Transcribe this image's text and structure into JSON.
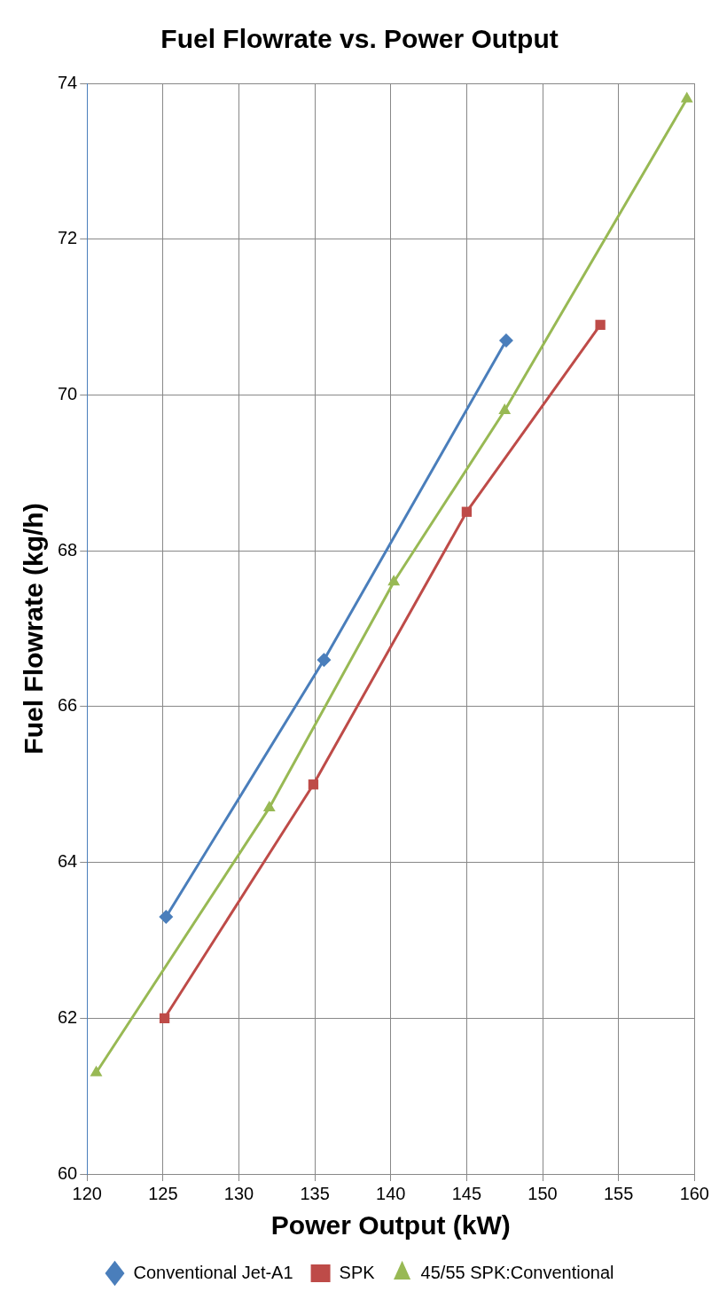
{
  "chart_data": {
    "type": "line",
    "title": "Fuel Flowrate vs. Power Output",
    "xlabel": "Power Output (kW)",
    "ylabel": "Fuel Flowrate (kg/h)",
    "series": [
      {
        "name": "Conventional Jet-A1",
        "color": "#4a7ebb",
        "marker": "diamond",
        "x": [
          125.2,
          135.6,
          147.6
        ],
        "values": [
          63.3,
          66.6,
          70.7
        ]
      },
      {
        "name": "SPK",
        "color": "#be4b48",
        "marker": "square",
        "x": [
          125.1,
          134.9,
          145.0,
          153.8
        ],
        "values": [
          62.0,
          65.0,
          68.5,
          70.9
        ]
      },
      {
        "name": "45/55 SPK:Conventional",
        "color": "#98b954",
        "marker": "triangle",
        "x": [
          120.6,
          132.0,
          140.2,
          147.5,
          159.5
        ],
        "values": [
          61.3,
          64.7,
          67.6,
          69.8,
          73.8
        ]
      }
    ],
    "xlim": [
      120,
      160
    ],
    "xticks": [
      120,
      125,
      130,
      135,
      140,
      145,
      150,
      155,
      160
    ],
    "ylim": [
      60,
      74
    ],
    "yticks": [
      60,
      62,
      64,
      66,
      68,
      70,
      72,
      74
    ],
    "grid": true,
    "legend": "bottom",
    "line_style": "solid"
  }
}
